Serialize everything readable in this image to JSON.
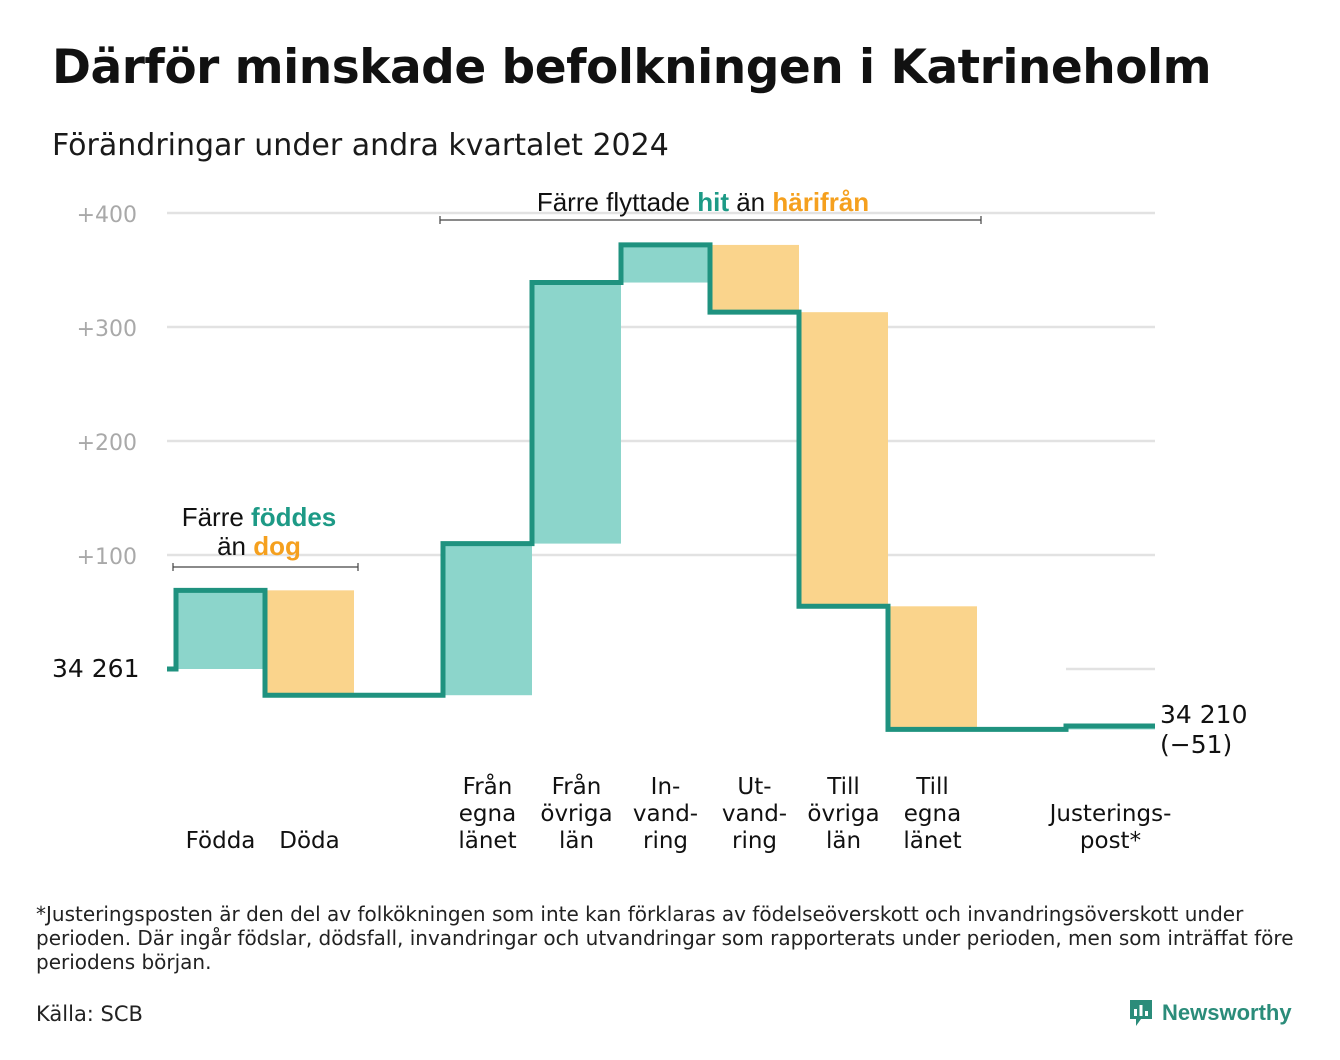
{
  "title": "Därför minskade befolkningen i Katrineholm",
  "subtitle": "Förändringar under andra kvartalet 2024",
  "footnote": "*Justeringsposten är den del av folkökningen som inte kan förklaras av födelseöverskott och invandringsöverskott under perioden. Där ingår födslar, dödsfall, invandringar och utvandringar som rapporterats under perioden, men som inträffat före periodens början.",
  "source": "Källa: SCB",
  "logo_text": "Newsworthy",
  "colors": {
    "increase": "#8cd5cb",
    "decrease": "#fad48c",
    "line": "#1f927f",
    "teal_text": "#1d9a86",
    "orange_text": "#f5a01e",
    "grid": "#e2e2e2",
    "tick": "#a9a9a9"
  },
  "chart_data": {
    "type": "waterfall",
    "start_value": 34261,
    "start_label": "34  261",
    "end_label_line1": "34 210",
    "end_label_line2": "(−51)",
    "y_ticks": [
      {
        "value": 100,
        "label": "+100"
      },
      {
        "value": 200,
        "label": "+200"
      },
      {
        "value": 300,
        "label": "+300"
      },
      {
        "value": 400,
        "label": "+400"
      }
    ],
    "ylim": [
      -80,
      410
    ],
    "steps": [
      {
        "label_lines": [
          "Födda"
        ],
        "change": 69
      },
      {
        "label_lines": [
          "Döda"
        ],
        "change": -92
      },
      {
        "label_lines": [
          "Från",
          "egna",
          "länet"
        ],
        "change": 133
      },
      {
        "label_lines": [
          "Från",
          "övriga",
          "län"
        ],
        "change": 229
      },
      {
        "label_lines": [
          "In-",
          "vand-",
          "ring"
        ],
        "change": 33
      },
      {
        "label_lines": [
          "Ut-",
          "vand-",
          "ring"
        ],
        "change": -59
      },
      {
        "label_lines": [
          "Till",
          "övriga",
          "län"
        ],
        "change": -258
      },
      {
        "label_lines": [
          "Till",
          "egna",
          "länet"
        ],
        "change": -108
      },
      {
        "label_lines": [
          "Justerings-",
          "post*"
        ],
        "change": 3
      }
    ],
    "annotations": {
      "births": {
        "line1": "Färre ",
        "line1_colored": "föddes",
        "line2": "än ",
        "line2_colored": "dog"
      },
      "migration": {
        "text1": "Färre flyttade ",
        "colored1": "hit",
        "text2": " än ",
        "colored2": "härifrån"
      }
    }
  }
}
